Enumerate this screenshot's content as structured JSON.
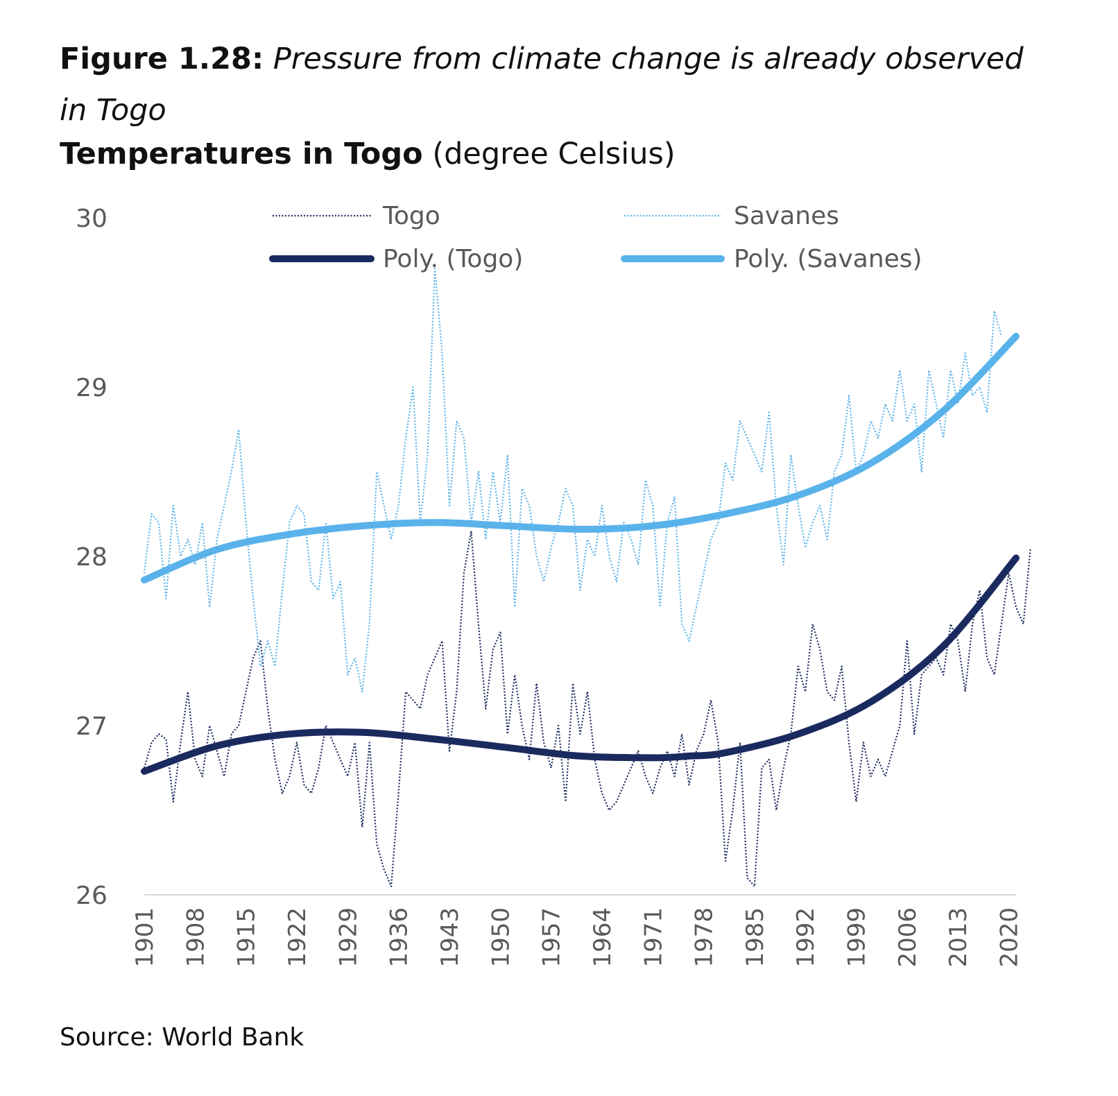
{
  "figure": {
    "label": "Figure 1.28:",
    "title": "Pressure from climate change is already observed in Togo"
  },
  "chart_title": {
    "bold": "Temperatures in Togo",
    "unit": "(degree Celsius)"
  },
  "source": "Source: World Bank",
  "colors": {
    "togo": "#1b2a5e",
    "savanes": "#5ab2ea",
    "axis": "#d9d9d9",
    "text": "#595959"
  },
  "chart_data": {
    "type": "line",
    "title": "Temperatures in Togo (degree Celsius)",
    "xlabel": "",
    "ylabel": "",
    "ylim": [
      26,
      30
    ],
    "yticks": [
      26,
      27,
      28,
      29,
      30
    ],
    "xlim": [
      1901,
      2021
    ],
    "xticks": [
      1901,
      1908,
      1915,
      1922,
      1929,
      1936,
      1943,
      1950,
      1957,
      1964,
      1971,
      1978,
      1985,
      1992,
      1999,
      2006,
      2013,
      2020
    ],
    "grid": false,
    "legend_position": "top",
    "series": [
      {
        "name": "Togo",
        "style": "dotted",
        "x_start": 1901,
        "values": [
          26.75,
          26.9,
          26.95,
          26.92,
          26.55,
          26.9,
          27.2,
          26.8,
          26.7,
          27.0,
          26.85,
          26.7,
          26.95,
          27.0,
          27.2,
          27.4,
          27.5,
          27.1,
          26.8,
          26.6,
          26.7,
          26.9,
          26.65,
          26.6,
          26.75,
          27.0,
          26.9,
          26.8,
          26.7,
          26.9,
          26.4,
          26.9,
          26.3,
          26.15,
          26.05,
          26.6,
          27.2,
          27.15,
          27.1,
          27.3,
          27.4,
          27.5,
          26.85,
          27.2,
          27.9,
          28.15,
          27.6,
          27.1,
          27.45,
          27.55,
          26.95,
          27.3,
          27.0,
          26.8,
          27.25,
          26.9,
          26.75,
          27.0,
          26.55,
          27.25,
          26.95,
          27.2,
          26.8,
          26.6,
          26.5,
          26.55,
          26.65,
          26.75,
          26.85,
          26.7,
          26.6,
          26.75,
          26.85,
          26.7,
          26.95,
          26.65,
          26.85,
          26.95,
          27.15,
          26.9,
          26.2,
          26.5,
          26.9,
          26.1,
          26.05,
          26.75,
          26.8,
          26.5,
          26.75,
          26.95,
          27.35,
          27.2,
          27.6,
          27.45,
          27.2,
          27.15,
          27.35,
          26.9,
          26.55,
          26.9,
          26.7,
          26.8,
          26.7,
          26.85,
          27.0,
          27.5,
          26.95,
          27.3,
          27.35,
          27.4,
          27.3,
          27.6,
          27.5,
          27.2,
          27.6,
          27.8,
          27.4,
          27.3,
          27.6,
          27.9,
          27.7,
          27.6,
          28.05
        ],
        "color": "#1b2a5e"
      },
      {
        "name": "Savanes",
        "style": "dotted",
        "x_start": 1901,
        "values": [
          27.9,
          28.25,
          28.2,
          27.75,
          28.3,
          28.0,
          28.1,
          27.95,
          28.2,
          27.7,
          28.1,
          28.3,
          28.5,
          28.75,
          28.2,
          27.75,
          27.35,
          27.5,
          27.35,
          27.8,
          28.2,
          28.3,
          28.25,
          27.85,
          27.8,
          28.2,
          27.75,
          27.85,
          27.3,
          27.4,
          27.2,
          27.6,
          28.5,
          28.3,
          28.1,
          28.3,
          28.7,
          29.0,
          28.2,
          28.6,
          29.7,
          29.2,
          28.3,
          28.8,
          28.7,
          28.2,
          28.5,
          28.1,
          28.5,
          28.2,
          28.6,
          27.7,
          28.4,
          28.3,
          28.0,
          27.85,
          28.05,
          28.2,
          28.4,
          28.3,
          27.8,
          28.1,
          28.0,
          28.3,
          28.0,
          27.85,
          28.2,
          28.1,
          27.95,
          28.45,
          28.3,
          27.7,
          28.2,
          28.35,
          27.6,
          27.5,
          27.7,
          27.9,
          28.1,
          28.2,
          28.55,
          28.45,
          28.8,
          28.7,
          28.6,
          28.5,
          28.85,
          28.3,
          27.95,
          28.6,
          28.3,
          28.05,
          28.2,
          28.3,
          28.1,
          28.5,
          28.6,
          28.95,
          28.5,
          28.6,
          28.8,
          28.7,
          28.9,
          28.8,
          29.1,
          28.8,
          28.9,
          28.5,
          29.1,
          28.9,
          28.7,
          29.1,
          28.9,
          29.2,
          28.95,
          29.0,
          28.85,
          29.45,
          29.3
        ],
        "color": "#5ab2ea"
      },
      {
        "name": "Poly. (Togo)",
        "style": "solid",
        "x": [
          1901,
          1911,
          1921,
          1931,
          1941,
          1951,
          1961,
          1971,
          1976,
          1981,
          1991,
          2001,
          2011,
          2021
        ],
        "values": [
          26.73,
          26.88,
          26.95,
          26.96,
          26.92,
          26.87,
          26.82,
          26.81,
          26.82,
          26.84,
          26.95,
          27.14,
          27.47,
          27.99
        ],
        "color": "#1b2a5e"
      },
      {
        "name": "Poly. (Savanes)",
        "style": "solid",
        "x": [
          1901,
          1911,
          1921,
          1931,
          1941,
          1951,
          1961,
          1971,
          1981,
          1991,
          2001,
          2011,
          2021
        ],
        "values": [
          27.86,
          28.04,
          28.13,
          28.18,
          28.2,
          28.18,
          28.16,
          28.18,
          28.25,
          28.36,
          28.55,
          28.86,
          29.3
        ],
        "color": "#5ab2ea"
      }
    ]
  }
}
